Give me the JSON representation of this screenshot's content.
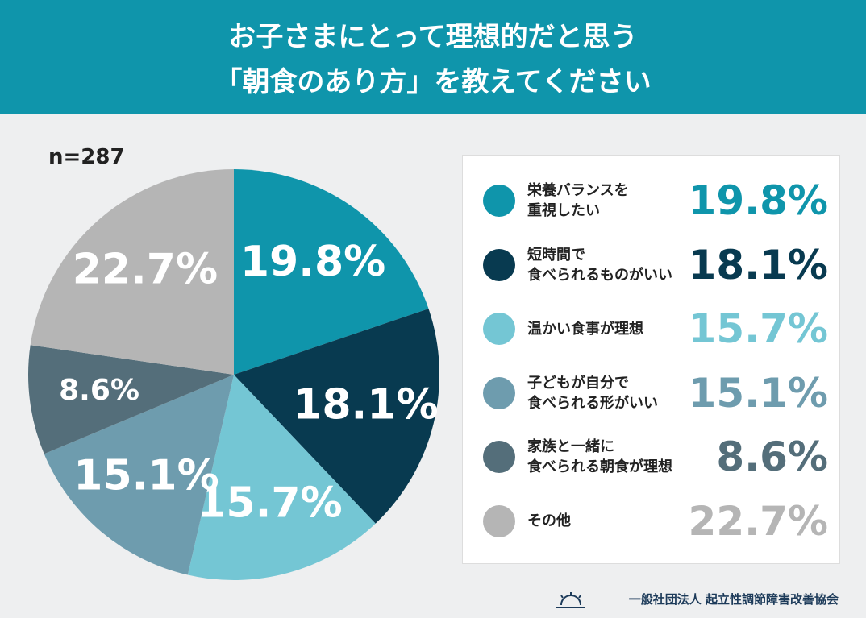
{
  "chart_data": {
    "type": "pie",
    "title": "お子さまにとって理想的だと思う\n「朝食のあり方」を教えてください",
    "subtitle": "n=287",
    "categories": [
      "栄養バランスを\n重視したい",
      "短時間で\n食べられるものがいい",
      "温かい食事が理想",
      "子どもが自分で\n食べられる形がいい",
      "家族と一緒に\n食べられる朝食が理想",
      "その他"
    ],
    "values": [
      19.8,
      18.1,
      15.7,
      15.1,
      8.6,
      22.7
    ],
    "value_labels": [
      "19.8%",
      "18.1%",
      "15.7%",
      "15.1%",
      "8.6%",
      "22.7%"
    ],
    "colors": [
      "#0f95ab",
      "#083a50",
      "#74c6d4",
      "#6e9cae",
      "#546e7a",
      "#b5b5b5"
    ],
    "source": "一般社団法人 起立性調節障害改善協会"
  }
}
